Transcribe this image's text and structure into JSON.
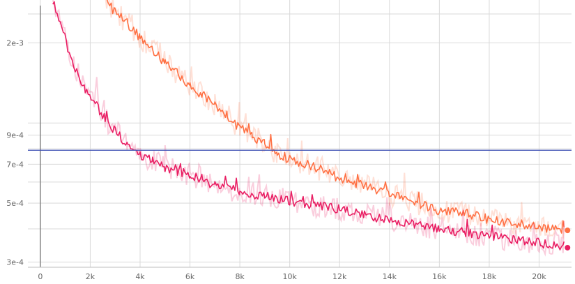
{
  "chart_data": {
    "type": "line",
    "title": "",
    "xlabel": "",
    "ylabel": "",
    "y_scale": "log",
    "xlim": [
      -500,
      21300
    ],
    "ylim": [
      0.000287,
      0.0029
    ],
    "x_ticks": [
      0,
      2000,
      4000,
      6000,
      8000,
      10000,
      12000,
      14000,
      16000,
      18000,
      20000
    ],
    "x_tick_labels": [
      "0",
      "2k",
      "4k",
      "6k",
      "8k",
      "10k",
      "12k",
      "14k",
      "16k",
      "18k",
      "20k"
    ],
    "y_ticks": [
      0.0003,
      0.0005,
      0.0007,
      0.0009,
      0.002
    ],
    "y_tick_labels": [
      "3e-4",
      "5e-4",
      "7e-4",
      "9e-4",
      "2e-3"
    ],
    "grid": true,
    "reference_line": {
      "y": 0.00079,
      "color": "#3f51b5"
    },
    "series": [
      {
        "color": "#ff7043",
        "x": [
          2600,
          3000,
          3500,
          4000,
          4500,
          5000,
          5500,
          6000,
          6500,
          7000,
          7500,
          8000,
          8500,
          9000,
          9500,
          10000,
          11000,
          12000,
          13000,
          14000,
          15000,
          16000,
          17000,
          18000,
          19000,
          20000,
          21000
        ],
        "y": [
          0.0029,
          0.0026,
          0.00236,
          0.0021,
          0.0019,
          0.00168,
          0.00153,
          0.00139,
          0.00127,
          0.00116,
          0.00106,
          0.00096,
          0.00089,
          0.00084,
          0.00077,
          0.00073,
          0.000685,
          0.00062,
          0.00058,
          0.00054,
          0.000505,
          0.00047,
          0.00046,
          0.000435,
          0.00042,
          0.000408,
          0.000395
        ]
      },
      {
        "color": "#e91e63",
        "x": [
          500,
          800,
          1100,
          1400,
          1800,
          2200,
          2600,
          3000,
          3500,
          4000,
          4500,
          5000,
          5500,
          6000,
          6500,
          7000,
          7500,
          8000,
          9000,
          10000,
          11000,
          12000,
          13000,
          14000,
          15000,
          16000,
          17000,
          18000,
          19000,
          20000,
          21000
        ],
        "y": [
          0.0029,
          0.0024,
          0.0019,
          0.0016,
          0.00135,
          0.00118,
          0.00104,
          0.00093,
          0.00083,
          0.00076,
          0.00072,
          0.00068,
          0.00066,
          0.00064,
          0.00061,
          0.00058,
          0.00057,
          0.00055,
          0.00053,
          0.00051,
          0.00049,
          0.000475,
          0.00045,
          0.00043,
          0.000415,
          0.0004,
          0.00039,
          0.000375,
          0.000365,
          0.000355,
          0.00034
        ]
      }
    ]
  }
}
